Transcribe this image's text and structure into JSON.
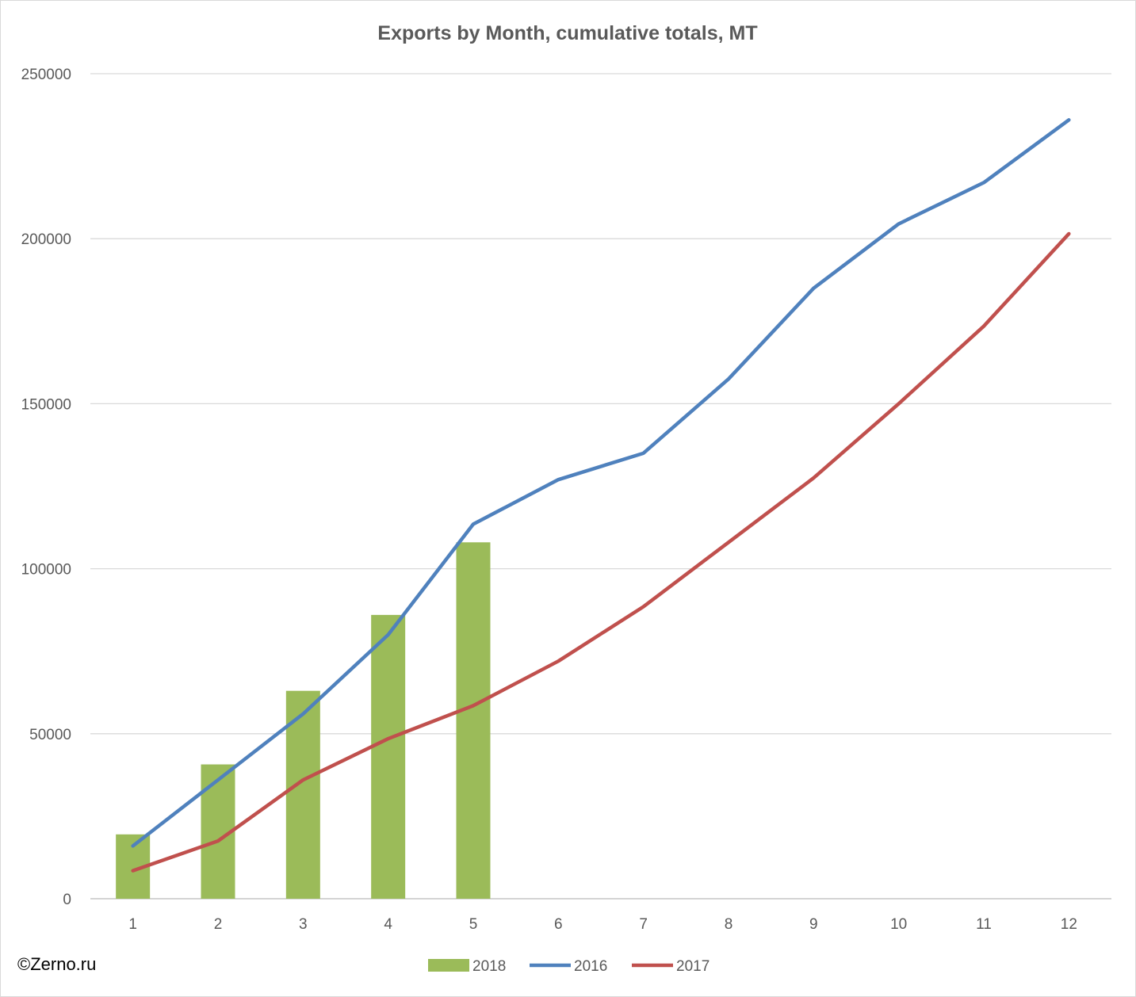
{
  "chart_data": {
    "type": "bar+line",
    "title": "Exports by Month, cumulative totals, MT",
    "categories": [
      "1",
      "2",
      "3",
      "4",
      "5",
      "6",
      "7",
      "8",
      "9",
      "10",
      "11",
      "12"
    ],
    "ylim": [
      0,
      250000
    ],
    "yticks": [
      "0",
      "50000",
      "100000",
      "150000",
      "200000",
      "250000"
    ],
    "ytick_values": [
      0,
      50000,
      100000,
      150000,
      200000,
      250000
    ],
    "grid": true,
    "legend_position": "bottom",
    "series": [
      {
        "name": "2018",
        "kind": "bar",
        "color": "#9bbb59",
        "values": [
          19500,
          40700,
          63000,
          86000,
          108000,
          null,
          null,
          null,
          null,
          null,
          null,
          null
        ]
      },
      {
        "name": "2016",
        "kind": "line",
        "color": "#4f81bd",
        "values": [
          16000,
          36000,
          56000,
          80000,
          113500,
          127000,
          135000,
          157500,
          185000,
          204500,
          217000,
          236000
        ]
      },
      {
        "name": "2017",
        "kind": "line",
        "color": "#c0504d",
        "values": [
          8500,
          17500,
          36000,
          48500,
          58500,
          72000,
          88500,
          108000,
          127500,
          150000,
          173500,
          201500
        ]
      }
    ]
  },
  "footer": {
    "copyright": "©Zerno.ru"
  }
}
